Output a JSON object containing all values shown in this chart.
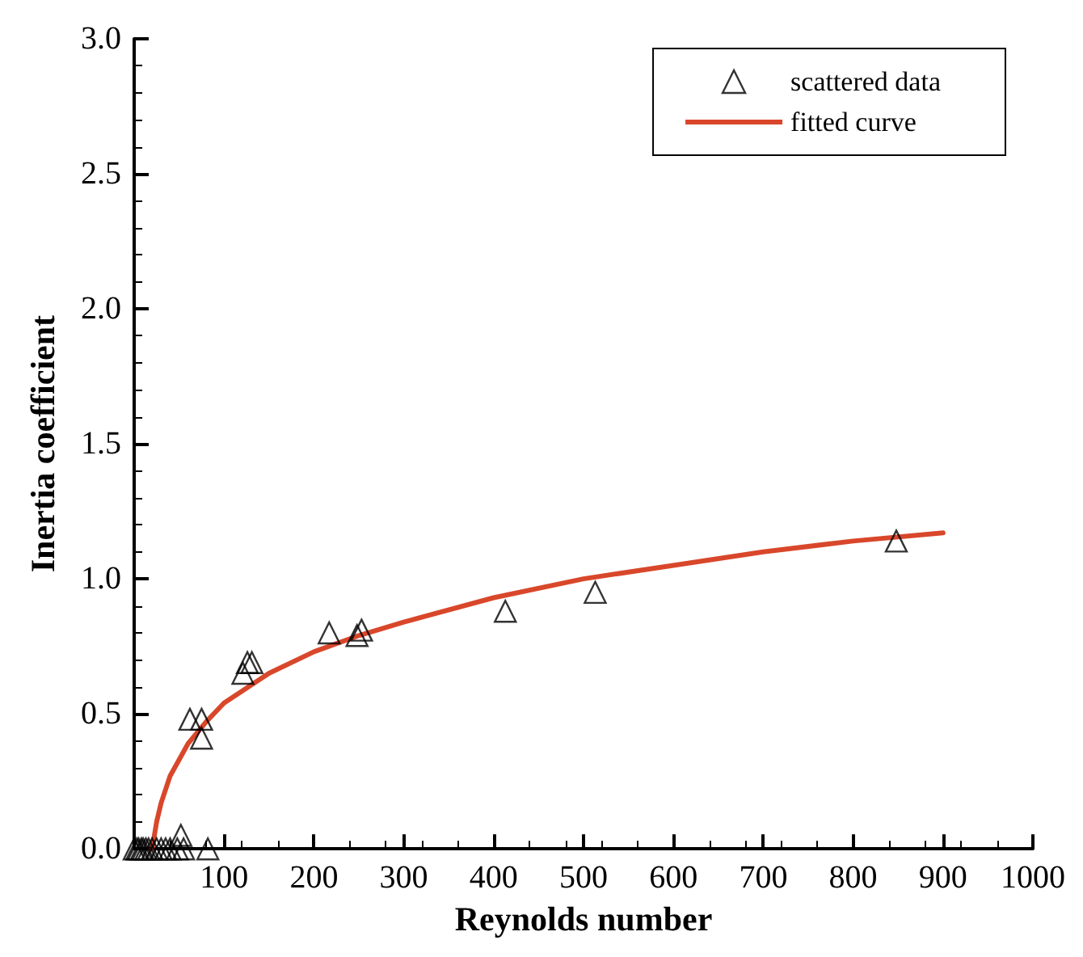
{
  "chart_data": {
    "type": "scatter",
    "xlabel": "Reynolds number",
    "ylabel": "Inertia coefficient",
    "xlim": [
      0,
      1000
    ],
    "xticks": [
      100,
      200,
      300,
      400,
      500,
      600,
      700,
      800,
      900,
      1000
    ],
    "ylim": [
      0,
      3
    ],
    "yticks": [
      {
        "value": 0,
        "label": "0.0"
      },
      0.5,
      {
        "value": 1,
        "label": "1.0"
      },
      1.5,
      {
        "value": 2,
        "label": "2.0"
      },
      2.5,
      {
        "value": 3,
        "label": "3.0"
      }
    ],
    "grid": false,
    "legend": "top right",
    "marker": "triangle",
    "series": [
      {
        "name": "scattered data",
        "color": "#000000",
        "x": [
          0,
          3,
          5,
          8,
          10,
          13,
          16,
          20,
          25,
          30,
          35,
          40,
          48,
          52,
          55,
          62,
          75,
          75,
          82,
          121,
          126,
          131,
          217,
          248,
          253,
          413,
          513,
          848
        ],
        "values": [
          0,
          0,
          0,
          0,
          0,
          0,
          0,
          0,
          0,
          0,
          0,
          0,
          0,
          0.05,
          0,
          0.48,
          0.48,
          0.41,
          0,
          0.65,
          0.69,
          0.69,
          0.8,
          0.79,
          0.81,
          0.88,
          0.95,
          1.14
        ]
      },
      {
        "name": "fitted curve",
        "type": "line",
        "color": "#d9472b",
        "marker": "none",
        "line_style": "solid",
        "x": [
          20,
          25,
          30,
          40,
          50,
          60,
          80,
          100,
          150,
          200,
          250,
          300,
          400,
          500,
          600,
          700,
          800,
          900
        ],
        "values": [
          0,
          0.1,
          0.17,
          0.27,
          0.33,
          0.39,
          0.47,
          0.54,
          0.65,
          0.73,
          0.79,
          0.84,
          0.93,
          1.0,
          1.05,
          1.1,
          1.14,
          1.17
        ]
      }
    ]
  }
}
